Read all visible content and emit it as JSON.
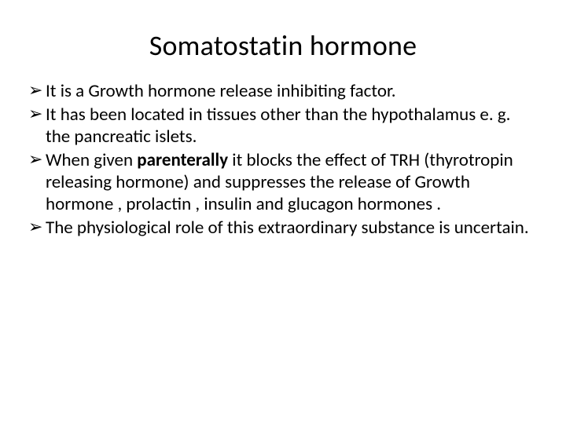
{
  "title": "Somatostatin hormone",
  "bullet_marker": "➢",
  "bullets": [
    {
      "before": "It is a Growth hormone release inhibiting  factor.",
      "bold": "",
      "after": ""
    },
    {
      "before": "It has been located in tissues other than the hypothalamus e. g. the pancreatic islets.",
      "bold": "",
      "after": ""
    },
    {
      "before": "When given ",
      "bold": "parenterally",
      "after": " it blocks the effect of TRH (thyrotropin releasing hormone) and suppresses the release of Growth hormone , prolactin , insulin and glucagon hormones ."
    },
    {
      "before": "The physiological role of this extraordinary substance is uncertain.",
      "bold": "",
      "after": ""
    }
  ],
  "colors": {
    "background": "#ffffff",
    "text": "#000000"
  },
  "typography": {
    "title_fontsize": 36,
    "body_fontsize": 23,
    "font_family": "Calibri"
  }
}
